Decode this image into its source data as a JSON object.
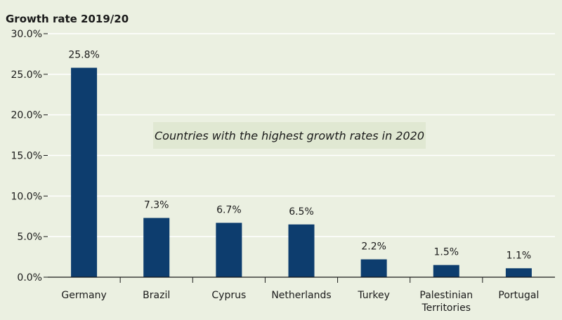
{
  "chart_data": {
    "type": "bar",
    "ylabel": "Growth rate 2019/20",
    "annotation": "Countries with the highest growth rates in 2020",
    "categories": [
      "Germany",
      "Brazil",
      "Cyprus",
      "Netherlands",
      "Turkey",
      "Palestinian Territories",
      "Portugal"
    ],
    "category_lines": [
      [
        "Germany"
      ],
      [
        "Brazil"
      ],
      [
        "Cyprus"
      ],
      [
        "Netherlands"
      ],
      [
        "Turkey"
      ],
      [
        "Palestinian",
        "Territories"
      ],
      [
        "Portugal"
      ]
    ],
    "values": [
      25.8,
      7.3,
      6.7,
      6.5,
      2.2,
      1.5,
      1.1
    ],
    "data_labels": [
      "25.8%",
      "7.3%",
      "6.7%",
      "6.5%",
      "2.2%",
      "1.5%",
      "1.1%"
    ],
    "ylim": [
      0,
      30
    ],
    "yticks": [
      0,
      5,
      10,
      15,
      20,
      25,
      30
    ],
    "ytick_labels": [
      "0.0%",
      "5.0%",
      "10.0%",
      "15.0%",
      "20.0%",
      "25.0%",
      "30.0%"
    ],
    "grid": true,
    "colors": {
      "bar": "#0d3d6e",
      "background": "#ebf0e1",
      "grid": "#ffffff",
      "annotation_bg": "#e0e8d2"
    }
  }
}
